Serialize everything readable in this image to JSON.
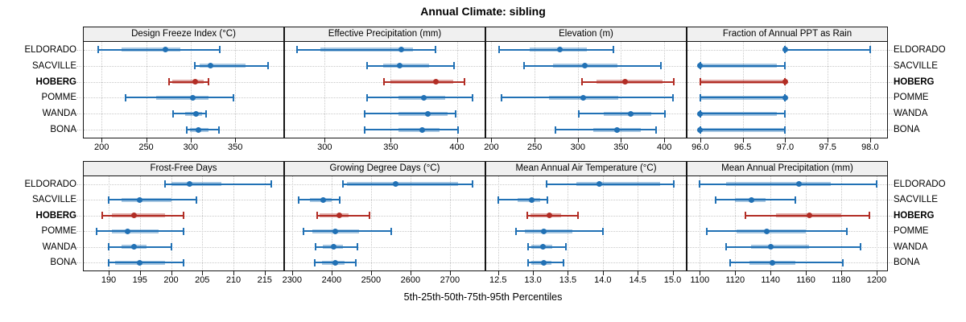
{
  "figure": {
    "title": "Annual Climate: sibling",
    "caption": "5th-25th-50th-75th-95th Percentiles"
  },
  "colors": {
    "series_blue": "#2171b5",
    "series_blue_band": "rgba(33,113,181,0.40)",
    "highlight_red": "#b22d25",
    "highlight_red_band": "rgba(178,45,37,0.40)",
    "header_bg": "#f0f0f0",
    "grid": "#c9c9c9",
    "border": "#161616"
  },
  "chart_data": {
    "type": "scatter",
    "subtype": "five-number-percentile-intervals (dot = median, thick band = 25th-75th, whisker = 5th-95th)",
    "title": "Annual Climate: sibling",
    "xlabel": "5th-25th-50th-75th-95th Percentiles",
    "percentiles": [
      5,
      25,
      50,
      75,
      95
    ],
    "grid": "dotted",
    "layout": "2 rows x 4 columns of panels, site labels on both left and right",
    "sites": [
      "ELDORADO",
      "SACVILLE",
      "HOBERG",
      "POMME",
      "WANDA",
      "BONA"
    ],
    "highlight_site": "HOBERG",
    "panels": [
      {
        "label": "Design Freeze Index (°C)",
        "xlim": [
          180,
          404
        ],
        "ticks": [
          200,
          250,
          300,
          350
        ],
        "tick_labels": [
          "200",
          "250",
          "300",
          "350"
        ],
        "values": {
          "ELDORADO": [
            196,
            222,
            272,
            288,
            333
          ],
          "SACVILLE": [
            305,
            310,
            322,
            362,
            387
          ],
          "HOBERG": [
            276,
            279,
            305,
            315,
            320
          ],
          "POMME": [
            227,
            261,
            302,
            320,
            348
          ],
          "WANDA": [
            280,
            294,
            306,
            313,
            317
          ],
          "BONA": [
            296,
            299,
            309,
            320,
            332
          ]
        }
      },
      {
        "label": "Effective Precipitation (mm)",
        "xlim": [
          270,
          421
        ],
        "ticks": [
          300,
          350,
          400
        ],
        "tick_labels": [
          "300",
          "350",
          "400"
        ],
        "values": {
          "ELDORADO": [
            279,
            297,
            358,
            367,
            384
          ],
          "SACVILLE": [
            332,
            344,
            357,
            379,
            398
          ],
          "HOBERG": [
            345,
            350,
            384,
            397,
            406
          ],
          "POMME": [
            332,
            356,
            375,
            391,
            412
          ],
          "WANDA": [
            330,
            356,
            378,
            393,
            399
          ],
          "BONA": [
            330,
            356,
            374,
            387,
            401
          ]
        }
      },
      {
        "label": "Elevation (m)",
        "xlim": [
          194,
          425
        ],
        "ticks": [
          200,
          250,
          300,
          350,
          400
        ],
        "tick_labels": [
          "200",
          "250",
          "300",
          "350",
          "400"
        ],
        "values": {
          "ELDORADO": [
            209,
            244,
            279,
            310,
            341
          ],
          "SACVILLE": [
            238,
            271,
            308,
            346,
            396
          ],
          "HOBERG": [
            305,
            322,
            355,
            398,
            411
          ],
          "POMME": [
            212,
            267,
            306,
            347,
            410
          ],
          "WANDA": [
            301,
            330,
            361,
            385,
            401
          ],
          "BONA": [
            274,
            318,
            345,
            373,
            391
          ]
        }
      },
      {
        "label": "Fraction of Annual PPT as Rain",
        "xlim": [
          95.85,
          98.2
        ],
        "ticks": [
          96.0,
          96.5,
          97.0,
          97.5,
          98.0
        ],
        "tick_labels": [
          "96.0",
          "96.5",
          "97.0",
          "97.5",
          "98.0"
        ],
        "values": {
          "ELDORADO": [
            97,
            97,
            97,
            97,
            98
          ],
          "SACVILLE": [
            96,
            96,
            96,
            96.9,
            97
          ],
          "HOBERG": [
            96,
            96,
            97,
            97,
            97
          ],
          "POMME": [
            96,
            96,
            97,
            97,
            97
          ],
          "WANDA": [
            96,
            96,
            96,
            96.9,
            97
          ],
          "BONA": [
            96,
            96,
            96,
            97,
            97
          ]
        }
      },
      {
        "label": "Frost-Free Days",
        "xlim": [
          186,
          218
        ],
        "ticks": [
          190,
          195,
          200,
          205,
          210,
          215
        ],
        "tick_labels": [
          "190",
          "195",
          "200",
          "205",
          "210",
          "215"
        ],
        "values": {
          "ELDORADO": [
            199,
            200,
            203,
            208,
            216
          ],
          "SACVILLE": [
            190,
            192,
            195,
            200,
            204
          ],
          "HOBERG": [
            189,
            190.5,
            194,
            199,
            202
          ],
          "POMME": [
            188,
            190.5,
            193,
            198,
            202
          ],
          "WANDA": [
            190,
            192,
            194,
            196,
            200
          ],
          "BONA": [
            190,
            191,
            195,
            199,
            202
          ]
        }
      },
      {
        "label": "Growing Degree Days (°C)",
        "xlim": [
          2282,
          2788
        ],
        "ticks": [
          2300,
          2400,
          2500,
          2600,
          2700
        ],
        "tick_labels": [
          "2300",
          "2400",
          "2500",
          "2600",
          "2700"
        ],
        "values": {
          "ELDORADO": [
            2429,
            2440,
            2562,
            2720,
            2758
          ],
          "SACVILLE": [
            2316,
            2345,
            2378,
            2400,
            2421
          ],
          "HOBERG": [
            2363,
            2370,
            2420,
            2444,
            2496
          ],
          "POMME": [
            2329,
            2352,
            2410,
            2470,
            2552
          ],
          "WANDA": [
            2359,
            2378,
            2405,
            2428,
            2465
          ],
          "BONA": [
            2358,
            2375,
            2410,
            2433,
            2462
          ]
        }
      },
      {
        "label": "Mean Annual Air Temperature (°C)",
        "xlim": [
          12.33,
          15.19
        ],
        "ticks": [
          12.5,
          13.0,
          13.5,
          14.0,
          14.5,
          15.0
        ],
        "tick_labels": [
          "12.5",
          "13.0",
          "13.5",
          "14.0",
          "14.5",
          "15.0"
        ],
        "values": {
          "ELDORADO": [
            13.2,
            13.62,
            13.95,
            14.82,
            15.02
          ],
          "SACVILLE": [
            12.5,
            12.78,
            12.98,
            13.1,
            13.21
          ],
          "HOBERG": [
            12.92,
            12.96,
            13.23,
            13.4,
            13.65
          ],
          "POMME": [
            12.76,
            12.88,
            13.16,
            13.56,
            14.0
          ],
          "WANDA": [
            12.93,
            12.98,
            13.14,
            13.28,
            13.47
          ],
          "BONA": [
            12.93,
            12.98,
            13.15,
            13.26,
            13.44
          ]
        }
      },
      {
        "label": "Mean Annual Precipitation (mm)",
        "xlim": [
          1093,
          1206
        ],
        "ticks": [
          1100,
          1120,
          1140,
          1160,
          1180,
          1200
        ],
        "tick_labels": [
          "1100",
          "1120",
          "1140",
          "1160",
          "1180",
          "1200"
        ],
        "values": {
          "ELDORADO": [
            1100,
            1115,
            1156,
            1174,
            1200
          ],
          "SACVILLE": [
            1109,
            1120,
            1129,
            1137,
            1154
          ],
          "HOBERG": [
            1126,
            1143,
            1162,
            1180,
            1196
          ],
          "POMME": [
            1104,
            1121,
            1138,
            1160,
            1183
          ],
          "WANDA": [
            1115,
            1129,
            1140,
            1162,
            1191
          ],
          "BONA": [
            1117,
            1128,
            1141,
            1154,
            1181
          ]
        }
      }
    ]
  }
}
